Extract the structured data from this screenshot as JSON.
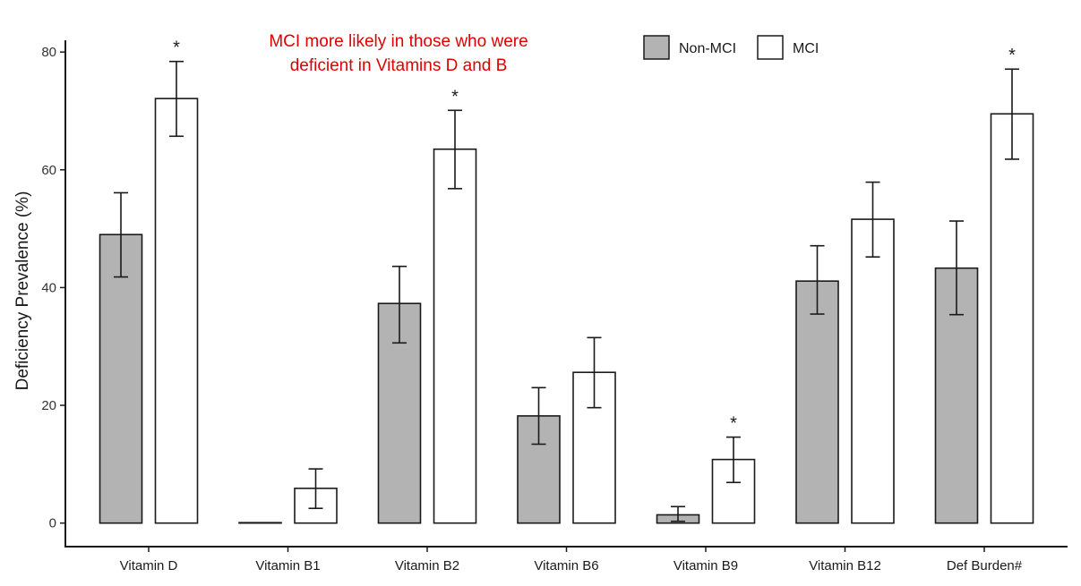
{
  "chart_data": {
    "type": "bar",
    "categories": [
      "Vitamin D",
      "Vitamin B1",
      "Vitamin B2",
      "Vitamin B6",
      "Vitamin B9",
      "Vitamin B12",
      "Def Burden#"
    ],
    "series": [
      {
        "name": "Non-MCI",
        "color": "#b3b3b3",
        "values": [
          49,
          0,
          37.3,
          18.2,
          1.4,
          41.1,
          43.3
        ],
        "err_low": [
          41.8,
          0,
          30.6,
          13.4,
          0.3,
          35.5,
          35.4
        ],
        "err_high": [
          56.1,
          0,
          43.6,
          23.0,
          2.8,
          47.1,
          51.3
        ],
        "sig": [
          "",
          "",
          "",
          "",
          "",
          "",
          ""
        ]
      },
      {
        "name": "MCI",
        "color": "#ffffff",
        "values": [
          72.1,
          5.9,
          63.5,
          25.6,
          10.8,
          51.6,
          69.5
        ],
        "err_low": [
          65.7,
          2.5,
          56.8,
          19.6,
          6.9,
          45.2,
          61.8
        ],
        "err_high": [
          78.4,
          9.2,
          70.1,
          31.5,
          14.6,
          57.9,
          77.1
        ],
        "sig": [
          "*",
          "",
          "*",
          "",
          "*",
          "",
          "*"
        ]
      }
    ],
    "title": "",
    "xlabel": "",
    "ylabel": "Deficiency Prevalence (%)",
    "ylim": [
      -4,
      82
    ],
    "yticks": [
      0,
      20,
      40,
      60,
      80
    ],
    "grid": false,
    "legend_position": "top-right",
    "annotation_lines": [
      "MCI more likely in those who were",
      "deficient in Vitamins D and B"
    ],
    "annotation_color": "#e00000"
  }
}
